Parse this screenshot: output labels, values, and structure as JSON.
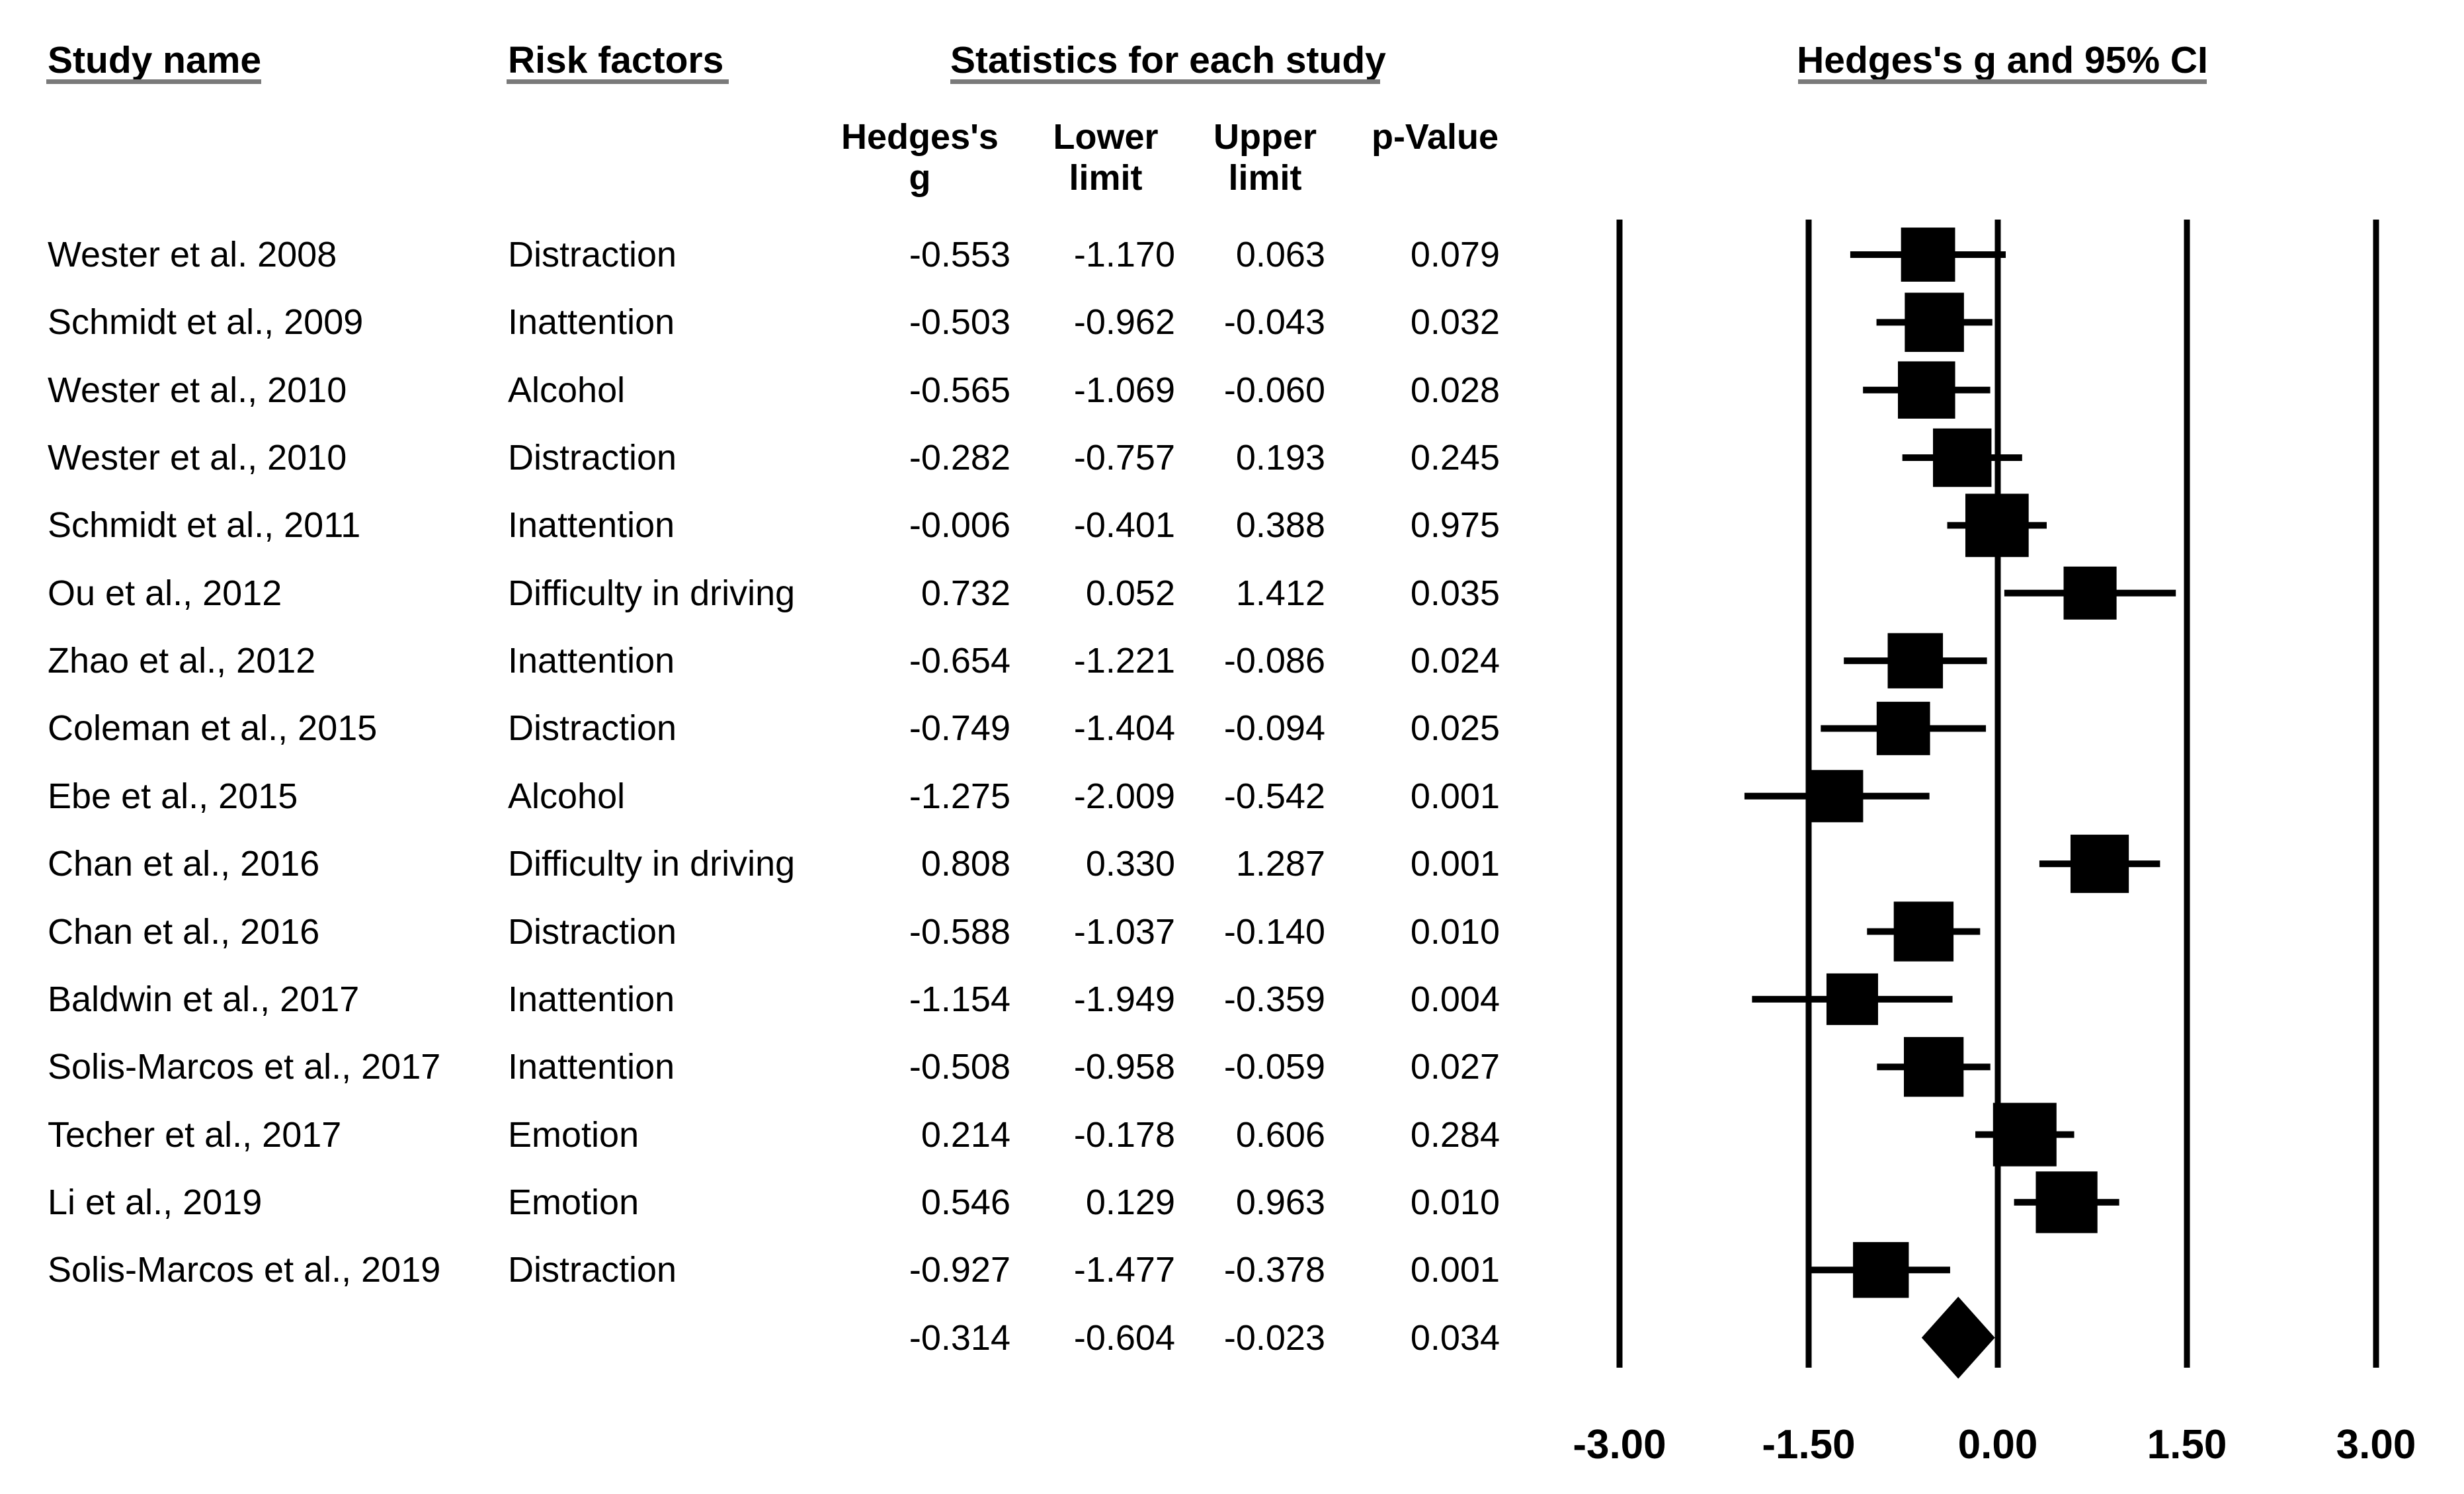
{
  "headers": {
    "study_name": "Study name",
    "risk_factors": "Risk factors",
    "statistics": "Statistics for each study",
    "plot": "Hedges's g and 95% CI"
  },
  "stat_columns": [
    {
      "line1": "Hedges's",
      "line2": "g"
    },
    {
      "line1": "Lower",
      "line2": "limit"
    },
    {
      "line1": "Upper",
      "line2": "limit"
    },
    {
      "line1": "",
      "line2": "p-Value"
    }
  ],
  "colors": {
    "background": "#ffffff",
    "text": "#000000",
    "underline": "#7a7a7a",
    "line": "#000000",
    "marker": "#000000"
  },
  "chart_data": {
    "type": "forest",
    "title": "Hedges's g and 95% CI",
    "effect_measure": "Hedges's g",
    "xlim": [
      -3,
      3
    ],
    "x_ticks": [
      -3.0,
      -1.5,
      0.0,
      1.5,
      3.0
    ],
    "x_tick_labels": [
      "-3.00",
      "-1.50",
      "0.00",
      "1.50",
      "3.00"
    ],
    "grid": "vertical-lines-at-ticks",
    "studies": [
      {
        "name": "Wester et al. 2008",
        "risk_factor": "Distraction",
        "g": -0.553,
        "lower": -1.17,
        "upper": 0.063,
        "p": 0.079
      },
      {
        "name": "Schmidt et al., 2009",
        "risk_factor": "Inattention",
        "g": -0.503,
        "lower": -0.962,
        "upper": -0.043,
        "p": 0.032
      },
      {
        "name": "Wester et al., 2010",
        "risk_factor": "Alcohol",
        "g": -0.565,
        "lower": -1.069,
        "upper": -0.06,
        "p": 0.028
      },
      {
        "name": "Wester et al., 2010",
        "risk_factor": "Distraction",
        "g": -0.282,
        "lower": -0.757,
        "upper": 0.193,
        "p": 0.245
      },
      {
        "name": "Schmidt et al., 2011",
        "risk_factor": "Inattention",
        "g": -0.006,
        "lower": -0.401,
        "upper": 0.388,
        "p": 0.975
      },
      {
        "name": "Ou et al., 2012",
        "risk_factor": "Difficulty in driving",
        "g": 0.732,
        "lower": 0.052,
        "upper": 1.412,
        "p": 0.035
      },
      {
        "name": "Zhao et al., 2012",
        "risk_factor": "Inattention",
        "g": -0.654,
        "lower": -1.221,
        "upper": -0.086,
        "p": 0.024
      },
      {
        "name": "Coleman et al., 2015",
        "risk_factor": "Distraction",
        "g": -0.749,
        "lower": -1.404,
        "upper": -0.094,
        "p": 0.025
      },
      {
        "name": "Ebe et al., 2015",
        "risk_factor": "Alcohol",
        "g": -1.275,
        "lower": -2.009,
        "upper": -0.542,
        "p": 0.001
      },
      {
        "name": "Chan et al., 2016",
        "risk_factor": "Difficulty in driving",
        "g": 0.808,
        "lower": 0.33,
        "upper": 1.287,
        "p": 0.001
      },
      {
        "name": "Chan et al., 2016",
        "risk_factor": "Distraction",
        "g": -0.588,
        "lower": -1.037,
        "upper": -0.14,
        "p": 0.01
      },
      {
        "name": "Baldwin et al., 2017",
        "risk_factor": "Inattention",
        "g": -1.154,
        "lower": -1.949,
        "upper": -0.359,
        "p": 0.004
      },
      {
        "name": "Solis-Marcos et al., 2017",
        "risk_factor": "Inattention",
        "g": -0.508,
        "lower": -0.958,
        "upper": -0.059,
        "p": 0.027
      },
      {
        "name": "Techer et al., 2017",
        "risk_factor": "Emotion",
        "g": 0.214,
        "lower": -0.178,
        "upper": 0.606,
        "p": 0.284
      },
      {
        "name": "Li et al., 2019",
        "risk_factor": "Emotion",
        "g": 0.546,
        "lower": 0.129,
        "upper": 0.963,
        "p": 0.01
      },
      {
        "name": "Solis-Marcos et al., 2019",
        "risk_factor": "Distraction",
        "g": -0.927,
        "lower": -1.477,
        "upper": -0.378,
        "p": 0.001
      }
    ],
    "pooled": {
      "name": "",
      "risk_factor": "",
      "g": -0.314,
      "lower": -0.604,
      "upper": -0.023,
      "p": 0.034,
      "marker": "diamond"
    }
  }
}
